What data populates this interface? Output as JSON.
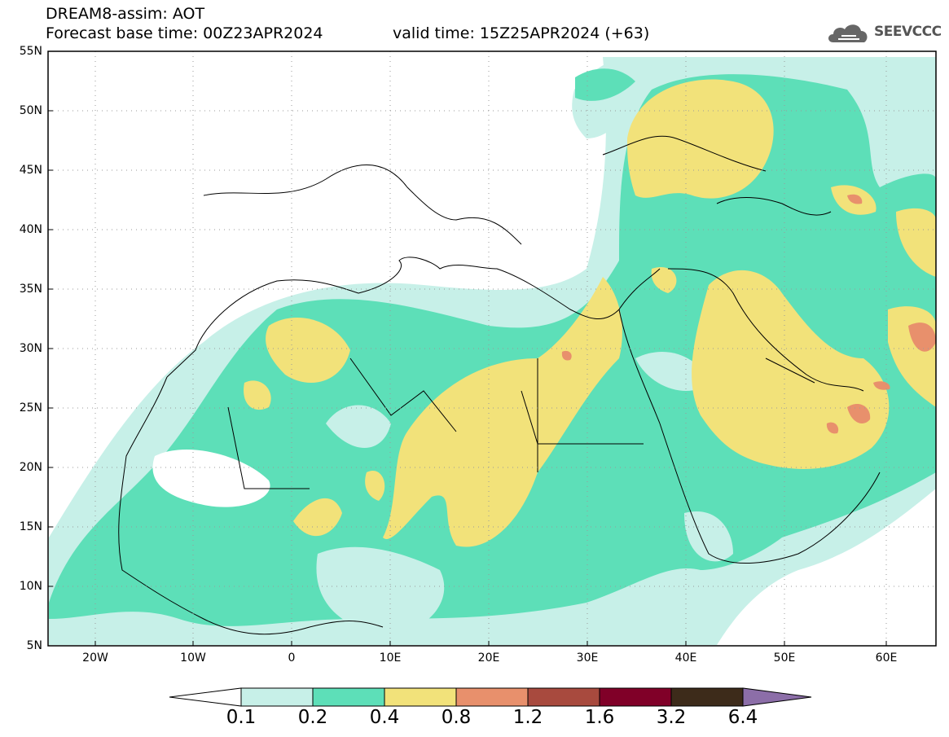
{
  "header": {
    "title": "DREAM8-assim: AOT",
    "base_time": "Forecast base time: 00Z23APR2024",
    "valid_time": "valid time: 15Z25APR2024 (+63)"
  },
  "logo": {
    "text": "SEEVCCC",
    "icon": "cloud-logo-icon"
  },
  "map": {
    "lon_range": [
      -25,
      65
    ],
    "lat_range": [
      5,
      55
    ],
    "lat_labels": [
      "55N",
      "50N",
      "45N",
      "40N",
      "35N",
      "30N",
      "25N",
      "20N",
      "15N",
      "10N",
      "5N"
    ],
    "lon_labels": [
      "20W",
      "10W",
      "0",
      "10E",
      "20E",
      "30E",
      "40E",
      "50E",
      "60E"
    ],
    "grid": true
  },
  "colorbar": {
    "labels": [
      "0.1",
      "0.2",
      "0.4",
      "0.8",
      "1.2",
      "1.6",
      "3.2",
      "6.4"
    ],
    "colors": [
      "#ffffff",
      "#c7f0e8",
      "#5ddfb8",
      "#f2e27a",
      "#e8906c",
      "#a84a3e",
      "#800028",
      "#3d2b1a",
      "#8c6ea8"
    ]
  }
}
